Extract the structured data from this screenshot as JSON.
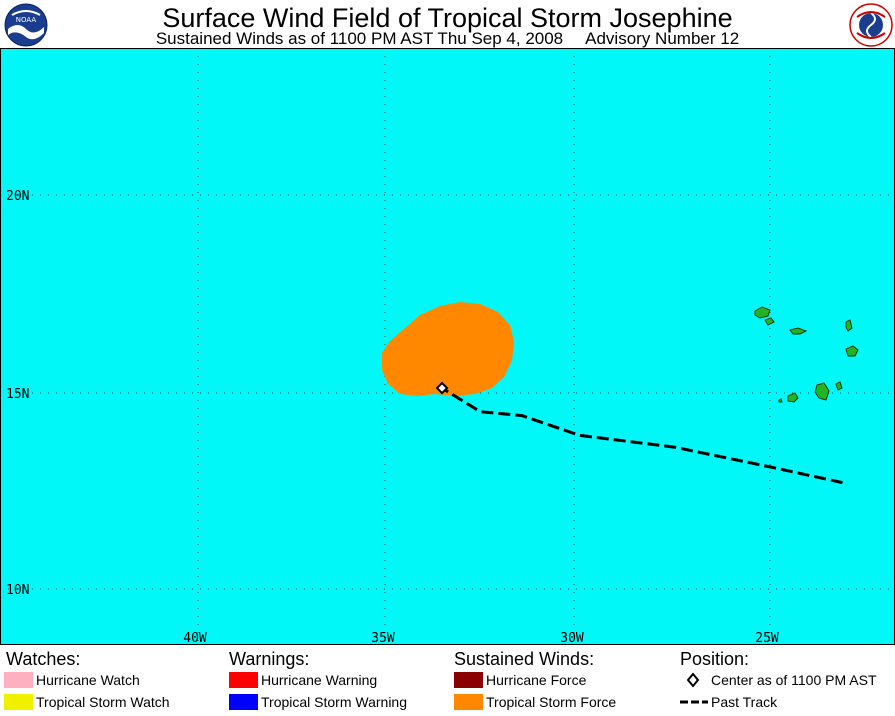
{
  "header": {
    "title": "Surface Wind Field of Tropical Storm Josephine",
    "subtitle_time": "Sustained Winds as of 1100 PM AST Thu Sep 4, 2008",
    "subtitle_advisory": "Advisory Number 12",
    "left_logo": "noaa-logo",
    "right_logo": "nws-logo"
  },
  "map": {
    "ocean_color": "#00f8f8",
    "land_color": "#23b423",
    "wind_field_color": "#ff8800",
    "lat_labels": [
      "20N",
      "15N",
      "10N"
    ],
    "lon_labels": [
      "40W",
      "35W",
      "30W",
      "25W"
    ]
  },
  "storm": {
    "name": "Josephine",
    "center": {
      "lat": 15.1,
      "lon": -33.6
    },
    "past_track": [
      {
        "lat": 12.7,
        "lon": -23.1
      },
      {
        "lat": 13.1,
        "lon": -25.0
      },
      {
        "lat": 13.6,
        "lon": -27.5
      },
      {
        "lat": 13.9,
        "lon": -30.0
      },
      {
        "lat": 14.4,
        "lon": -31.5
      },
      {
        "lat": 14.5,
        "lon": -32.6
      },
      {
        "lat": 15.1,
        "lon": -33.6
      }
    ]
  },
  "legend": {
    "watches": {
      "heading": "Watches:",
      "items": [
        {
          "label": "Hurricane Watch",
          "color": "#ffb0c0"
        },
        {
          "label": "Tropical Storm Watch",
          "color": "#f0f000"
        }
      ]
    },
    "warnings": {
      "heading": "Warnings:",
      "items": [
        {
          "label": "Hurricane Warning",
          "color": "#ff0000"
        },
        {
          "label": "Tropical Storm Warning",
          "color": "#0000ff"
        }
      ]
    },
    "winds": {
      "heading": "Sustained Winds:",
      "items": [
        {
          "label": "Hurricane Force",
          "color": "#8b0000"
        },
        {
          "label": "Tropical Storm Force",
          "color": "#ff8800"
        }
      ]
    },
    "position": {
      "heading": "Position:",
      "center_label": "Center as of 1100 PM AST",
      "track_label": "Past Track"
    }
  }
}
